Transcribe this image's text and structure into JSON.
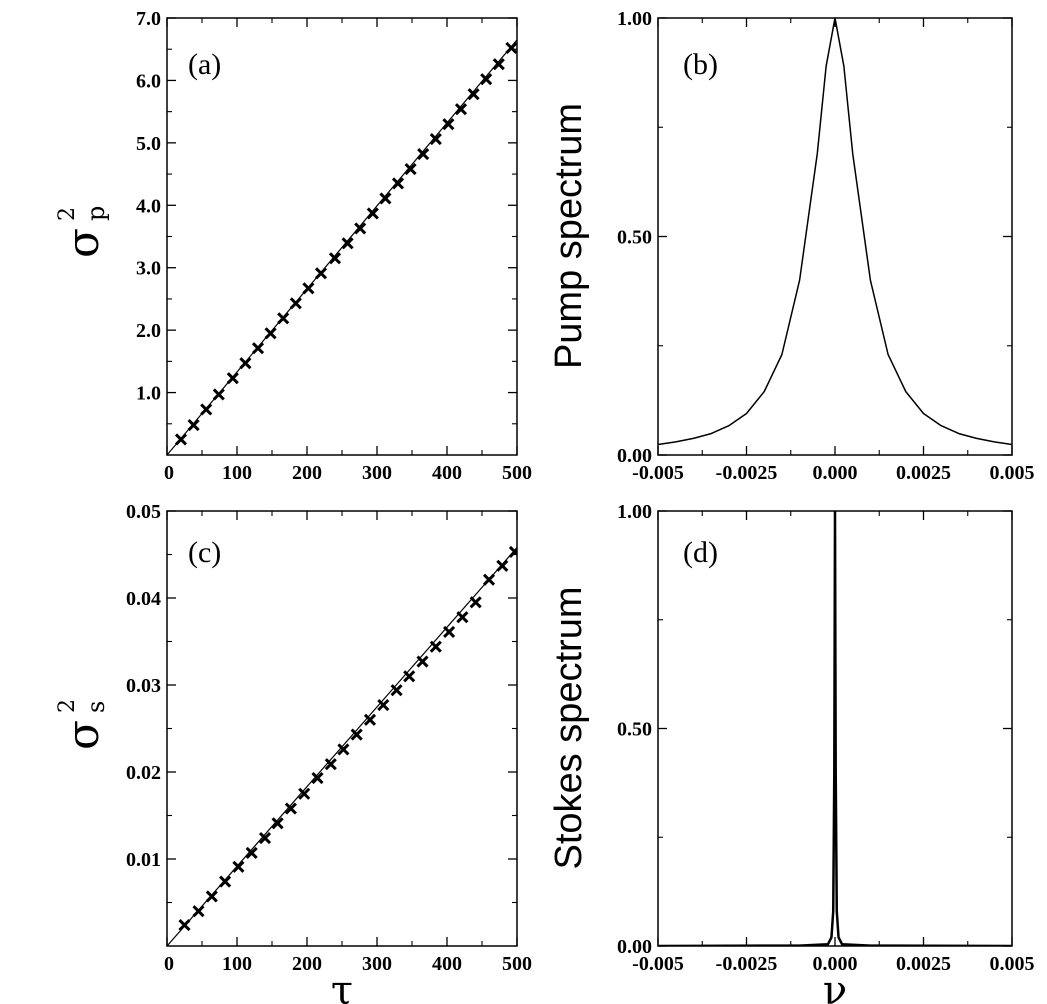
{
  "chart_data": [
    {
      "id": "a",
      "type": "scatter",
      "panel_label": "(a)",
      "xlabel": "",
      "ylabel": "σ_p^2",
      "ylabel_base": "σ",
      "ylabel_sub": "p",
      "ylabel_sup": "2",
      "xlim": [
        0,
        500
      ],
      "ylim": [
        0,
        7.0
      ],
      "xticks": [
        0,
        100,
        200,
        300,
        400,
        500
      ],
      "xtick_labels": [
        "0",
        "100",
        "200",
        "300",
        "400",
        "500"
      ],
      "yticks": [
        1.0,
        2.0,
        3.0,
        4.0,
        5.0,
        6.0,
        7.0
      ],
      "ytick_labels": [
        "1.0",
        "2.0",
        "3.0",
        "4.0",
        "5.0",
        "6.0",
        "7.0"
      ],
      "fit_line": {
        "x": [
          0,
          500
        ],
        "y": [
          0,
          6.65
        ]
      },
      "series": [
        {
          "marker": "x",
          "x": [
            20,
            38,
            56,
            74,
            94,
            112,
            130,
            148,
            166,
            184,
            202,
            220,
            240,
            258,
            276,
            294,
            312,
            330,
            348,
            366,
            384,
            402,
            420,
            438,
            456,
            474,
            492
          ],
          "y": [
            0.25,
            0.48,
            0.73,
            0.97,
            1.23,
            1.47,
            1.71,
            1.95,
            2.19,
            2.43,
            2.67,
            2.91,
            3.15,
            3.39,
            3.63,
            3.87,
            4.11,
            4.35,
            4.58,
            4.82,
            5.06,
            5.3,
            5.54,
            5.78,
            6.02,
            6.26,
            6.52
          ]
        }
      ]
    },
    {
      "id": "b",
      "type": "line",
      "panel_label": "(b)",
      "xlabel": "",
      "ylabel": "Pump spectrum",
      "xlim": [
        -0.005,
        0.005
      ],
      "ylim": [
        0,
        1.0
      ],
      "xticks": [
        -0.005,
        -0.0025,
        0.0,
        0.0025,
        0.005
      ],
      "xtick_labels": [
        "-0.005",
        "-0.0025",
        "0.000",
        "0.0025",
        "0.005"
      ],
      "yticks": [
        0.0,
        0.5,
        1.0
      ],
      "ytick_labels": [
        "0.00",
        "0.50",
        "1.00"
      ],
      "series": [
        {
          "x": [
            -0.005,
            -0.0045,
            -0.004,
            -0.0035,
            -0.003,
            -0.0025,
            -0.002,
            -0.0015,
            -0.001,
            -0.0005,
            -0.00025,
            0.0,
            0.00025,
            0.0005,
            0.001,
            0.0015,
            0.002,
            0.0025,
            0.003,
            0.0035,
            0.004,
            0.0045,
            0.005
          ],
          "y": [
            0.024,
            0.03,
            0.038,
            0.049,
            0.067,
            0.095,
            0.145,
            0.23,
            0.4,
            0.69,
            0.89,
            1.0,
            0.89,
            0.69,
            0.4,
            0.23,
            0.145,
            0.095,
            0.067,
            0.049,
            0.038,
            0.03,
            0.024
          ]
        }
      ]
    },
    {
      "id": "c",
      "type": "scatter",
      "panel_label": "(c)",
      "xlabel": "τ",
      "ylabel": "σ_s^2",
      "ylabel_base": "σ",
      "ylabel_sub": "s",
      "ylabel_sup": "2",
      "xlim": [
        0,
        500
      ],
      "ylim": [
        0,
        0.05
      ],
      "xticks": [
        0,
        100,
        200,
        300,
        400,
        500
      ],
      "xtick_labels": [
        "0",
        "100",
        "200",
        "300",
        "400",
        "500"
      ],
      "yticks": [
        0.01,
        0.02,
        0.03,
        0.04,
        0.05
      ],
      "ytick_labels": [
        "0.01",
        "0.02",
        "0.03",
        "0.04",
        "0.05"
      ],
      "fit_line": {
        "x": [
          0,
          500
        ],
        "y": [
          0,
          0.0458
        ]
      },
      "series": [
        {
          "marker": "x",
          "x": [
            25,
            45,
            64,
            83,
            102,
            121,
            140,
            158,
            177,
            196,
            215,
            234,
            252,
            271,
            290,
            309,
            328,
            346,
            365,
            384,
            403,
            422,
            441,
            460,
            479,
            497
          ],
          "y": [
            0.0024,
            0.004,
            0.0057,
            0.0074,
            0.0091,
            0.0107,
            0.0124,
            0.0141,
            0.0158,
            0.0175,
            0.0193,
            0.0209,
            0.0226,
            0.0243,
            0.026,
            0.0277,
            0.0294,
            0.031,
            0.0327,
            0.0344,
            0.0361,
            0.0378,
            0.0395,
            0.0421,
            0.0437,
            0.0453
          ]
        }
      ]
    },
    {
      "id": "d",
      "type": "line",
      "panel_label": "(d)",
      "xlabel": "ν",
      "ylabel": "Stokes spectrum",
      "xlim": [
        -0.005,
        0.005
      ],
      "ylim": [
        0,
        1.0
      ],
      "xticks": [
        -0.005,
        -0.0025,
        0.0,
        0.0025,
        0.005
      ],
      "xtick_labels": [
        "-0.005",
        "-0.0025",
        "0.000",
        "0.0025",
        "0.005"
      ],
      "yticks": [
        0.0,
        0.5,
        1.0
      ],
      "ytick_labels": [
        "0.00",
        "0.50",
        "1.00"
      ],
      "series": [
        {
          "x": [
            -0.005,
            -0.001,
            -0.0002,
            -0.0001,
            -5e-05,
            -2e-05,
            0.0,
            2e-05,
            5e-05,
            0.0001,
            0.0002,
            0.001,
            0.005
          ],
          "y": [
            0.0,
            0.001,
            0.004,
            0.02,
            0.08,
            0.4,
            1.0,
            0.4,
            0.08,
            0.02,
            0.004,
            0.001,
            0.0
          ]
        }
      ]
    }
  ]
}
